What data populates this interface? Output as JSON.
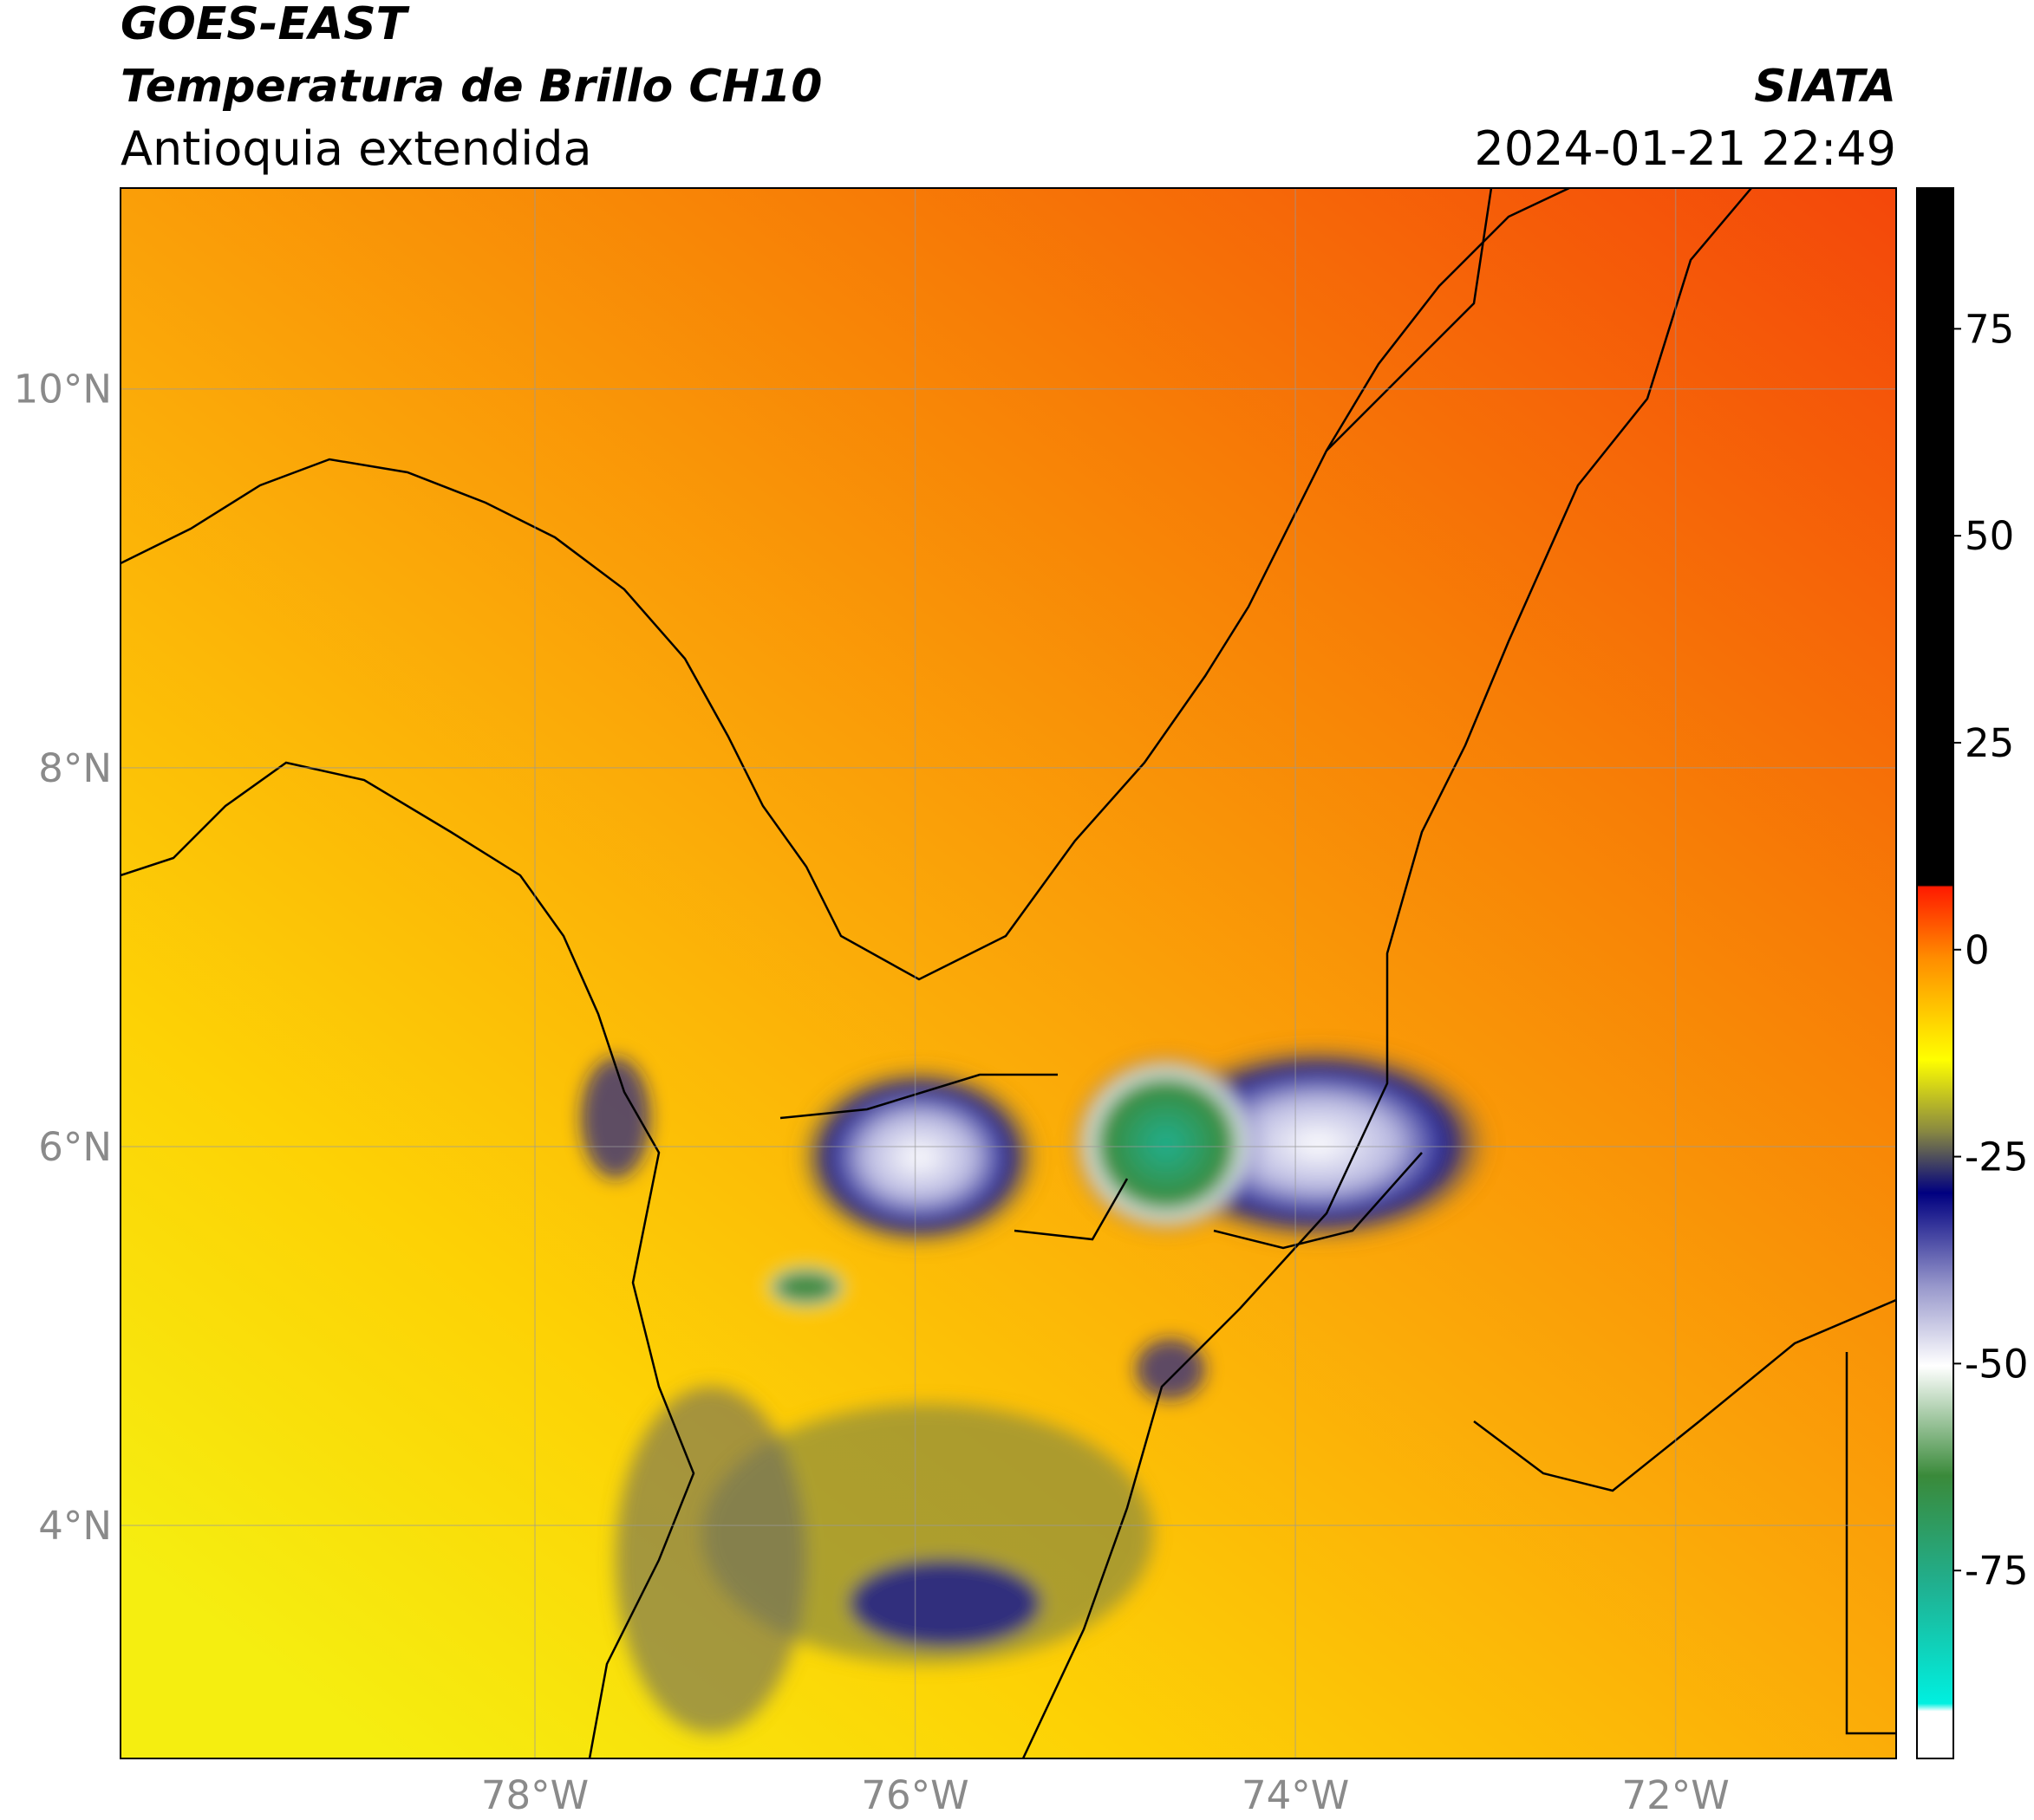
{
  "header": {
    "title": "GOES-EAST",
    "subtitle": "Temperatura de Brillo CH10",
    "region": "Antioquia extendida",
    "source": "SIATA",
    "datetime": "2024-01-21 22:49"
  },
  "map": {
    "lon_range": [
      -80.18,
      -70.84
    ],
    "lat_range": [
      2.77,
      11.06
    ],
    "lon_ticks": [
      {
        "value": -78,
        "label": "78°W"
      },
      {
        "value": -76,
        "label": "76°W"
      },
      {
        "value": -74,
        "label": "74°W"
      },
      {
        "value": -72,
        "label": "72°W"
      }
    ],
    "lat_ticks": [
      {
        "value": 10,
        "label": "10°N"
      },
      {
        "value": 8,
        "label": "8°N"
      },
      {
        "value": 6,
        "label": "6°N"
      },
      {
        "value": 4,
        "label": "4°N"
      }
    ]
  },
  "colorbar": {
    "range": [
      -97.7,
      92
    ],
    "ticks": [
      75,
      50,
      25,
      0,
      -25,
      -50,
      -75
    ]
  }
}
